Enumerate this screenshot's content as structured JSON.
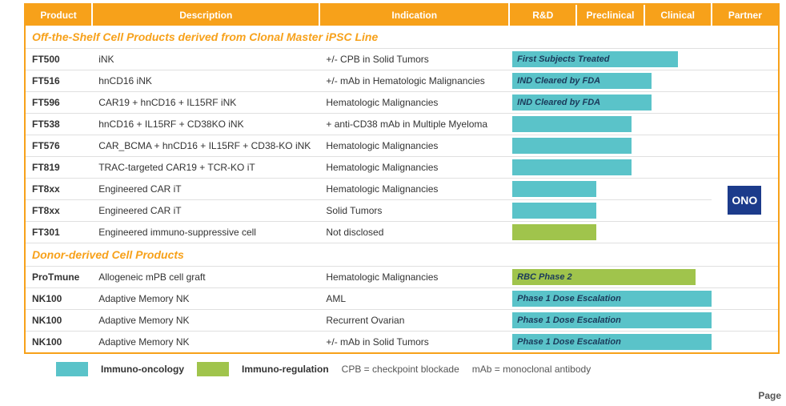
{
  "colors": {
    "orange": "#f7a11a",
    "teal": "#5ac3c9",
    "green": "#a0c44c",
    "onoBlue": "#1c3b8b",
    "barText": "#1a3a5a"
  },
  "header": {
    "product": "Product",
    "description": "Description",
    "indication": "Indication",
    "rd": "R&D",
    "preclinical": "Preclinical",
    "clinical": "Clinical",
    "partner": "Partner"
  },
  "sections": [
    {
      "title": "Off-the-Shelf Cell Products derived from Clonal Master iPSC Line",
      "rows": [
        {
          "product": "FT500",
          "description": "iNK",
          "indication": "+/- CPB in Solid Tumors",
          "bar": {
            "color": "#5ac3c9",
            "widthPct": 83,
            "label": "First Subjects Treated"
          },
          "partner": null
        },
        {
          "product": "FT516",
          "description": "hnCD16 iNK",
          "indication": "+/- mAb in Hematologic Malignancies",
          "bar": {
            "color": "#5ac3c9",
            "widthPct": 70,
            "label": "IND Cleared by FDA"
          },
          "partner": null
        },
        {
          "product": "FT596",
          "description": "CAR19 + hnCD16 + IL15RF iNK",
          "indication": "Hematologic Malignancies",
          "bar": {
            "color": "#5ac3c9",
            "widthPct": 70,
            "label": "IND Cleared by FDA"
          },
          "partner": null
        },
        {
          "product": "FT538",
          "description": "hnCD16 + IL15RF + CD38KO iNK",
          "indication": "+ anti-CD38 mAb in Multiple Myeloma",
          "bar": {
            "color": "#5ac3c9",
            "widthPct": 60,
            "label": ""
          },
          "partner": null
        },
        {
          "product": "FT576",
          "description": "CAR_BCMA + hnCD16 + IL15RF + CD38-KO iNK",
          "indication": "Hematologic Malignancies",
          "bar": {
            "color": "#5ac3c9",
            "widthPct": 60,
            "label": ""
          },
          "partner": null
        },
        {
          "product": "FT819",
          "description": "TRAC-targeted CAR19 + TCR-KO iT",
          "indication": "Hematologic Malignancies",
          "bar": {
            "color": "#5ac3c9",
            "widthPct": 60,
            "label": ""
          },
          "partner": null
        },
        {
          "product": "FT8xx",
          "description": "Engineered CAR iT",
          "indication": "Hematologic Malignancies",
          "bar": {
            "color": "#5ac3c9",
            "widthPct": 42,
            "label": ""
          },
          "partner": "ONO"
        },
        {
          "product": "FT8xx",
          "description": "Engineered CAR iT",
          "indication": "Solid Tumors",
          "bar": {
            "color": "#5ac3c9",
            "widthPct": 42,
            "label": ""
          },
          "partner": null
        },
        {
          "product": "FT301",
          "description": "Engineered immuno-suppressive cell",
          "indication": "Not disclosed",
          "bar": {
            "color": "#a0c44c",
            "widthPct": 42,
            "label": ""
          },
          "partner": null
        }
      ]
    },
    {
      "title": "Donor-derived Cell Products",
      "rows": [
        {
          "product": "ProTmune",
          "description": "Allogeneic mPB cell graft",
          "indication": "Hematologic Malignancies",
          "bar": {
            "color": "#a0c44c",
            "widthPct": 92,
            "label": "RBC Phase 2"
          },
          "partner": null
        },
        {
          "product": "NK100",
          "description": "Adaptive Memory NK",
          "indication": "AML",
          "bar": {
            "color": "#5ac3c9",
            "widthPct": 100,
            "label": "Phase 1 Dose Escalation"
          },
          "partner": null
        },
        {
          "product": "NK100",
          "description": "Adaptive Memory NK",
          "indication": "Recurrent Ovarian",
          "bar": {
            "color": "#5ac3c9",
            "widthPct": 100,
            "label": "Phase 1 Dose Escalation"
          },
          "partner": null
        },
        {
          "product": "NK100",
          "description": "Adaptive Memory NK",
          "indication": "+/- mAb in Solid Tumors",
          "bar": {
            "color": "#5ac3c9",
            "widthPct": 100,
            "label": "Phase 1 Dose Escalation"
          },
          "partner": null
        }
      ]
    }
  ],
  "legend": {
    "immunoOncology": "Immuno-oncology",
    "immunoRegulation": "Immuno-regulation",
    "cpb": "CPB = checkpoint blockade",
    "mab": "mAb = monoclonal antibody"
  },
  "partnerLogo": "ONO",
  "footer": "Page "
}
